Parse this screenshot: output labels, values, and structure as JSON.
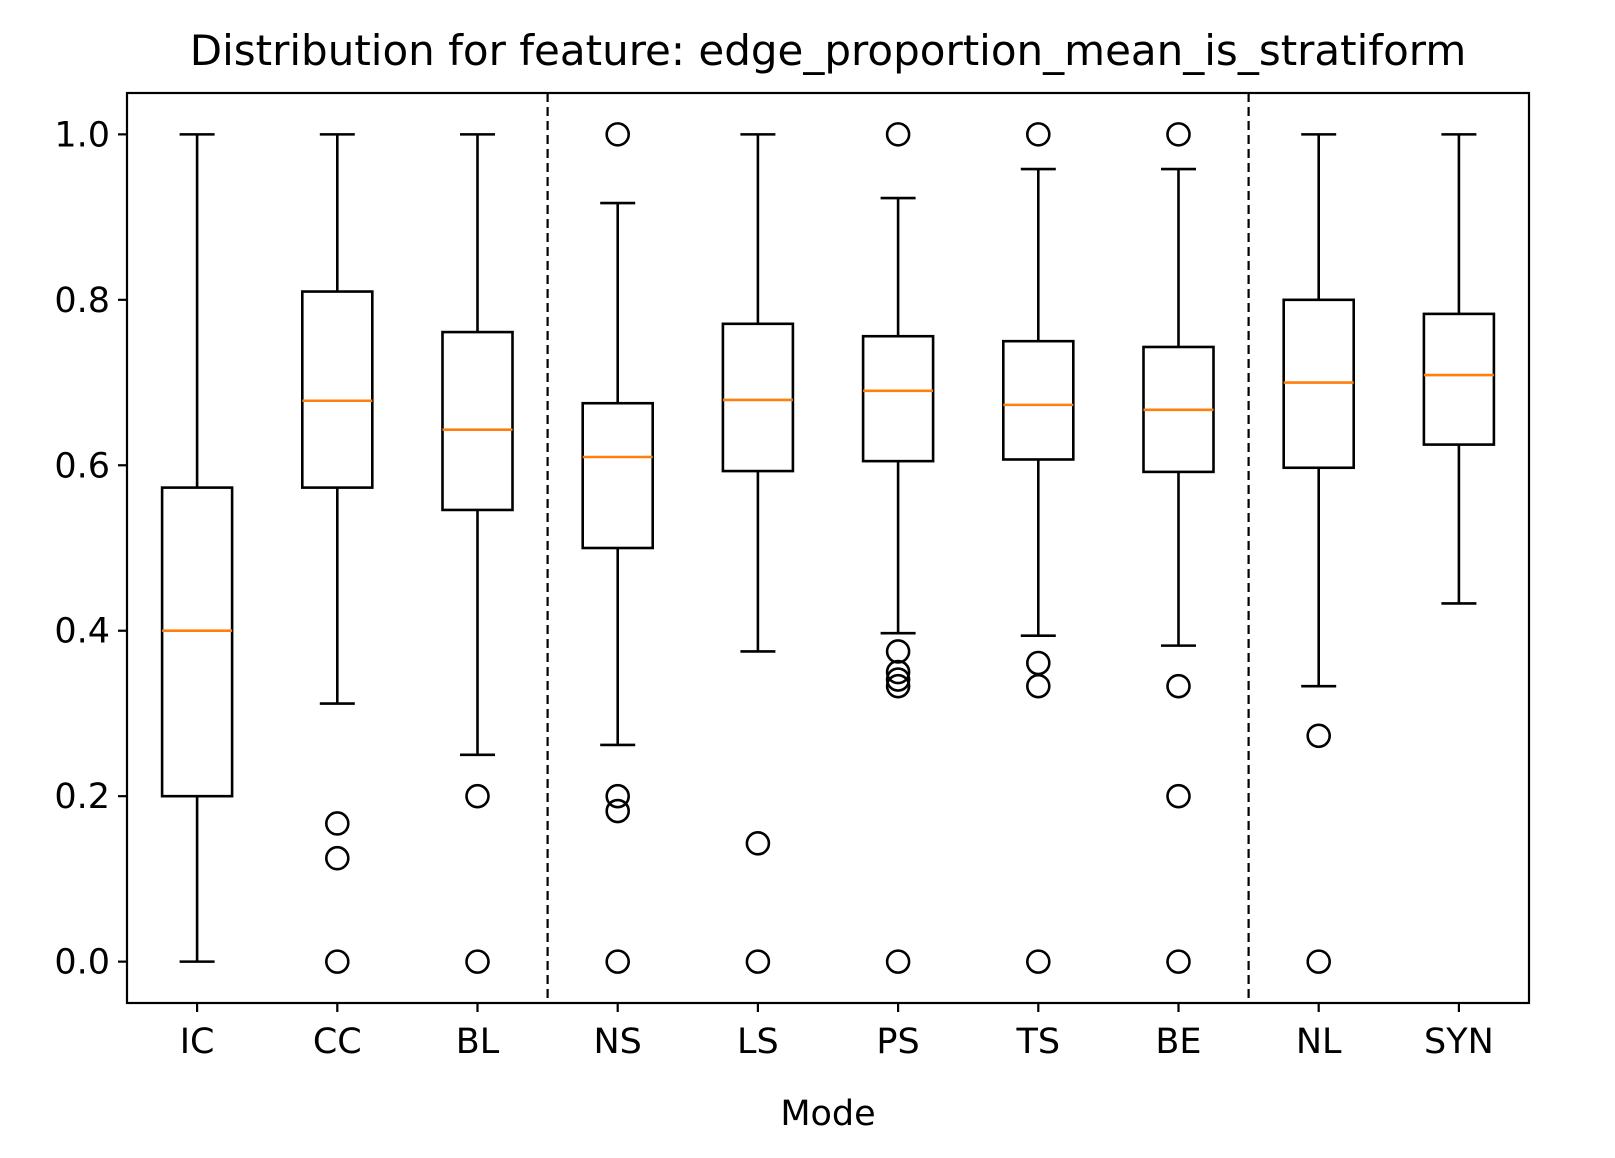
{
  "chart_data": {
    "type": "boxplot",
    "title": "Distribution for feature: edge_proportion_mean_is_stratiform",
    "xlabel": "Mode",
    "ylabel": "",
    "ylim": [
      -0.05,
      1.05
    ],
    "yticks": [
      "0.0",
      "0.2",
      "0.4",
      "0.6",
      "0.8",
      "1.0"
    ],
    "grid": false,
    "group_separators_after": [
      "BL",
      "BE"
    ],
    "colors": {
      "box": "#000000",
      "median": "#ff7f0e",
      "separator": "#000000"
    },
    "categories": [
      "IC",
      "CC",
      "BL",
      "NS",
      "LS",
      "PS",
      "TS",
      "BE",
      "NL",
      "SYN"
    ],
    "boxes": [
      {
        "label": "IC",
        "whisker_low": 0.0,
        "q1": 0.2,
        "median": 0.4,
        "q3": 0.573,
        "whisker_high": 1.0,
        "outliers": []
      },
      {
        "label": "CC",
        "whisker_low": 0.312,
        "q1": 0.573,
        "median": 0.678,
        "q3": 0.81,
        "whisker_high": 1.0,
        "outliers": [
          0.167,
          0.125,
          0.0
        ]
      },
      {
        "label": "BL",
        "whisker_low": 0.25,
        "q1": 0.546,
        "median": 0.643,
        "q3": 0.761,
        "whisker_high": 1.0,
        "outliers": [
          0.2,
          0.0
        ]
      },
      {
        "label": "NS",
        "whisker_low": 0.262,
        "q1": 0.5,
        "median": 0.61,
        "q3": 0.675,
        "whisker_high": 0.917,
        "outliers": [
          1.0,
          0.2,
          0.182,
          0.0
        ]
      },
      {
        "label": "LS",
        "whisker_low": 0.375,
        "q1": 0.593,
        "median": 0.679,
        "q3": 0.771,
        "whisker_high": 1.0,
        "outliers": [
          0.143,
          0.0
        ]
      },
      {
        "label": "PS",
        "whisker_low": 0.397,
        "q1": 0.605,
        "median": 0.69,
        "q3": 0.756,
        "whisker_high": 0.923,
        "outliers": [
          1.0,
          0.375,
          0.35,
          0.341,
          0.333,
          0.0
        ]
      },
      {
        "label": "TS",
        "whisker_low": 0.394,
        "q1": 0.607,
        "median": 0.673,
        "q3": 0.75,
        "whisker_high": 0.958,
        "outliers": [
          1.0,
          0.361,
          0.333,
          0.0
        ]
      },
      {
        "label": "BE",
        "whisker_low": 0.382,
        "q1": 0.592,
        "median": 0.667,
        "q3": 0.743,
        "whisker_high": 0.958,
        "outliers": [
          1.0,
          0.333,
          0.2,
          0.0
        ]
      },
      {
        "label": "NL",
        "whisker_low": 0.333,
        "q1": 0.597,
        "median": 0.7,
        "q3": 0.8,
        "whisker_high": 1.0,
        "outliers": [
          0.273,
          0.0
        ]
      },
      {
        "label": "SYN",
        "whisker_low": 0.433,
        "q1": 0.625,
        "median": 0.709,
        "q3": 0.783,
        "whisker_high": 1.0,
        "outliers": []
      }
    ]
  }
}
